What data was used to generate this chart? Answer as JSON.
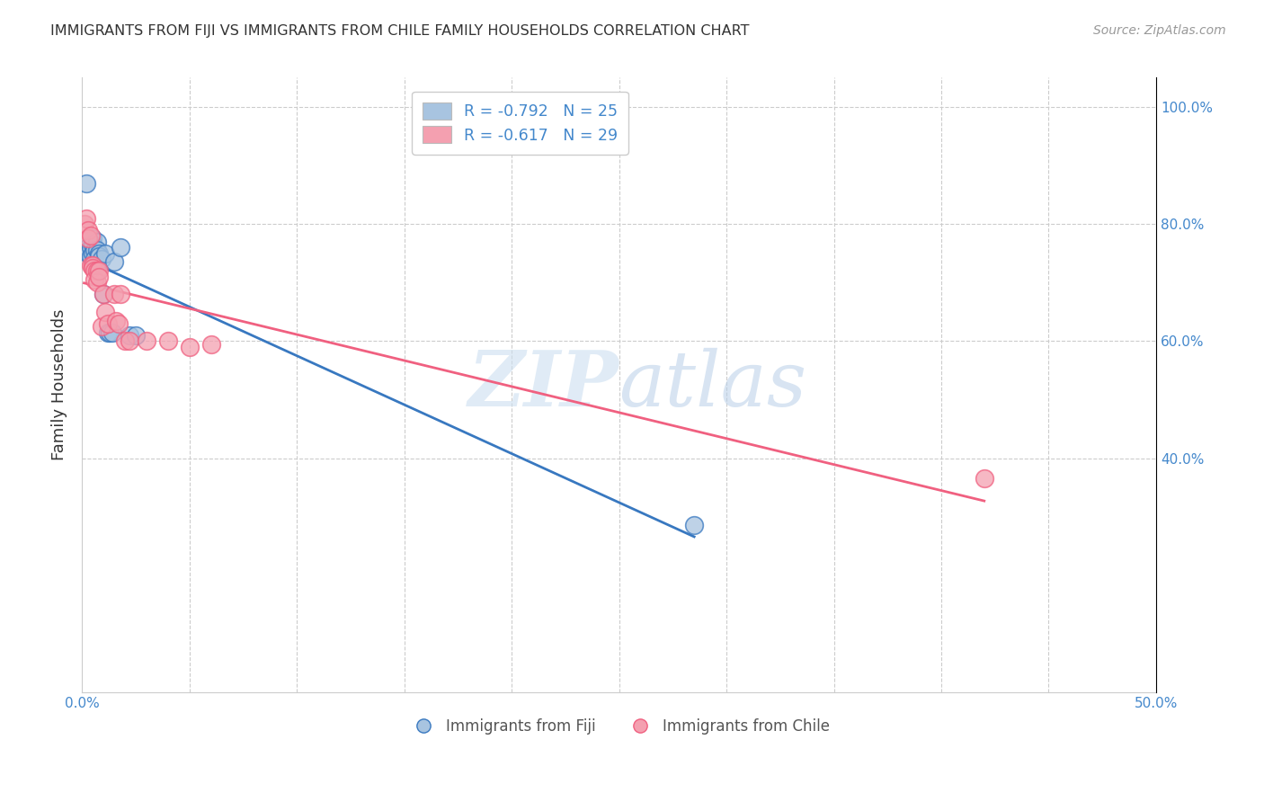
{
  "title": "IMMIGRANTS FROM FIJI VS IMMIGRANTS FROM CHILE FAMILY HOUSEHOLDS CORRELATION CHART",
  "source": "Source: ZipAtlas.com",
  "ylabel": "Family Households",
  "xlim": [
    0.0,
    0.5
  ],
  "ylim": [
    0.0,
    1.05
  ],
  "fiji_color": "#a8c4e0",
  "chile_color": "#f4a0b0",
  "fiji_line_color": "#3878c0",
  "chile_line_color": "#f06080",
  "fiji_R": -0.792,
  "fiji_N": 25,
  "chile_R": -0.617,
  "chile_N": 29,
  "fiji_x": [
    0.002,
    0.003,
    0.003,
    0.004,
    0.004,
    0.005,
    0.005,
    0.005,
    0.006,
    0.006,
    0.007,
    0.007,
    0.008,
    0.008,
    0.009,
    0.01,
    0.011,
    0.012,
    0.013,
    0.014,
    0.015,
    0.018,
    0.022,
    0.025,
    0.285
  ],
  "fiji_y": [
    0.87,
    0.76,
    0.75,
    0.76,
    0.745,
    0.775,
    0.765,
    0.75,
    0.755,
    0.74,
    0.77,
    0.755,
    0.75,
    0.745,
    0.74,
    0.68,
    0.75,
    0.615,
    0.615,
    0.615,
    0.735,
    0.76,
    0.61,
    0.61,
    0.285
  ],
  "chile_x": [
    0.001,
    0.002,
    0.003,
    0.003,
    0.004,
    0.004,
    0.005,
    0.005,
    0.006,
    0.006,
    0.007,
    0.007,
    0.008,
    0.008,
    0.009,
    0.01,
    0.011,
    0.012,
    0.015,
    0.016,
    0.017,
    0.018,
    0.02,
    0.022,
    0.03,
    0.04,
    0.05,
    0.06,
    0.42
  ],
  "chile_y": [
    0.8,
    0.81,
    0.79,
    0.775,
    0.73,
    0.78,
    0.73,
    0.725,
    0.72,
    0.705,
    0.72,
    0.7,
    0.72,
    0.71,
    0.625,
    0.68,
    0.65,
    0.63,
    0.68,
    0.635,
    0.63,
    0.68,
    0.6,
    0.6,
    0.6,
    0.6,
    0.59,
    0.595,
    0.365
  ],
  "watermark_zip": "ZIP",
  "watermark_atlas": "atlas",
  "legend_fiji_label": "R = -0.792   N = 25",
  "legend_chile_label": "R = -0.617   N = 29",
  "legend_fiji_loc_label": "Immigrants from Fiji",
  "legend_chile_loc_label": "Immigrants from Chile",
  "background_color": "#ffffff",
  "grid_color": "#cccccc"
}
